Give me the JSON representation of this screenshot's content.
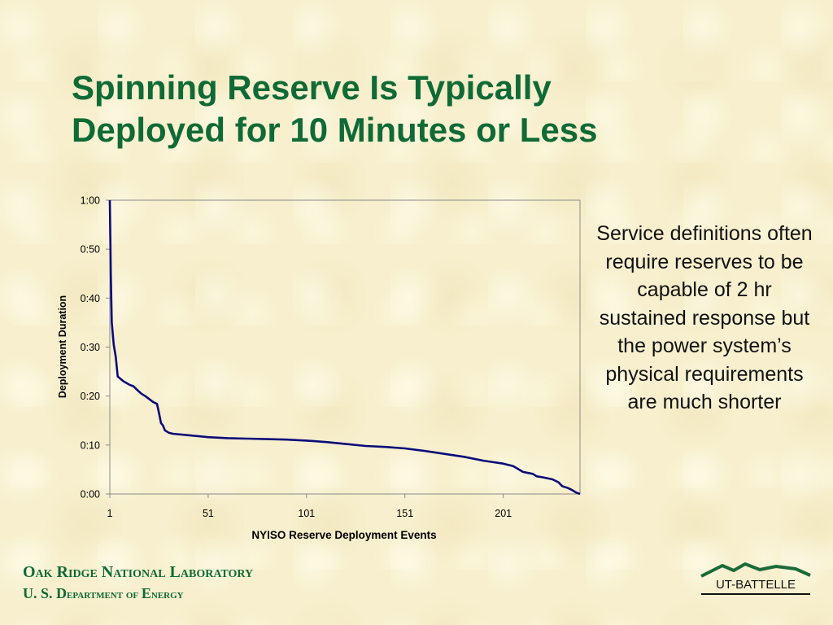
{
  "slide": {
    "title_line1": "Spinning Reserve Is Typically",
    "title_line2": "Deployed for 10 Minutes or Less",
    "side_text": "Service definitions often require reserves to be capable of 2 hr sustained  response but the power system’s physical requirements are much shorter",
    "footer_line1": "Oak Ridge National Laboratory",
    "footer_line2_a": "U. S. D",
    "footer_line2_b": "epartment of ",
    "footer_line2_c": "E",
    "footer_line2_d": "nergy",
    "logo_text": "UT-BATTELLE"
  },
  "colors": {
    "title": "#0f6a36",
    "line": "#0b0b7a",
    "footer": "#0f6a36"
  },
  "chart_data": {
    "type": "line",
    "xlabel": "NYISO Reserve Deployment Events",
    "ylabel": "Deployment Duration",
    "x_ticks": [
      "1",
      "51",
      "101",
      "151",
      "201"
    ],
    "x_tick_values": [
      1,
      51,
      101,
      151,
      201
    ],
    "y_ticks": [
      "0:00",
      "0:10",
      "0:20",
      "0:30",
      "0:40",
      "0:50",
      "1:00"
    ],
    "y_tick_values": [
      0,
      10,
      20,
      30,
      40,
      50,
      60
    ],
    "xlim": [
      1,
      240
    ],
    "ylim": [
      0,
      60
    ],
    "y_unit": "minutes",
    "grid": false,
    "series": [
      {
        "points": [
          [
            1,
            60
          ],
          [
            1.5,
            45
          ],
          [
            2,
            35
          ],
          [
            3,
            30.5
          ],
          [
            4,
            28
          ],
          [
            5,
            24
          ],
          [
            8,
            23
          ],
          [
            11,
            22.3
          ],
          [
            13,
            22
          ],
          [
            15,
            21.2
          ],
          [
            17,
            20.5
          ],
          [
            19,
            20
          ],
          [
            21,
            19.4
          ],
          [
            23,
            18.8
          ],
          [
            25,
            18.4
          ],
          [
            26,
            16.5
          ],
          [
            27,
            14.5
          ],
          [
            28,
            14
          ],
          [
            29,
            13
          ],
          [
            31,
            12.5
          ],
          [
            33,
            12.3
          ],
          [
            41,
            12
          ],
          [
            51,
            11.6
          ],
          [
            61,
            11.4
          ],
          [
            71,
            11.3
          ],
          [
            81,
            11.2
          ],
          [
            91,
            11.1
          ],
          [
            101,
            10.9
          ],
          [
            111,
            10.6
          ],
          [
            121,
            10.2
          ],
          [
            131,
            9.8
          ],
          [
            141,
            9.6
          ],
          [
            151,
            9.3
          ],
          [
            161,
            8.8
          ],
          [
            171,
            8.2
          ],
          [
            181,
            7.6
          ],
          [
            191,
            6.8
          ],
          [
            201,
            6.2
          ],
          [
            206,
            5.7
          ],
          [
            211,
            4.5
          ],
          [
            216,
            4.1
          ],
          [
            218,
            3.6
          ],
          [
            221,
            3.4
          ],
          [
            226,
            3.0
          ],
          [
            229,
            2.4
          ],
          [
            231,
            1.6
          ],
          [
            234,
            1.2
          ],
          [
            236,
            0.8
          ],
          [
            238,
            0.3
          ],
          [
            240,
            0
          ]
        ]
      }
    ]
  }
}
